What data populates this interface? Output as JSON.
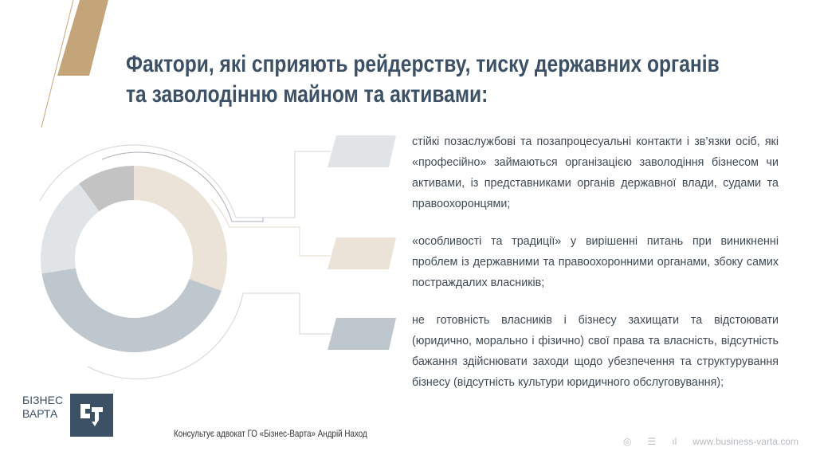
{
  "title": {
    "line1": "Фактори, які сприяють рейдерству, тиску державних органів",
    "line2": "та заволодінню майном та активами:"
  },
  "items": [
    {
      "text": "стійкі позаслужбові та позапроцесуальні контакти і зв’язки осіб, які «професійно» займаються організацією заволодіння бізнесом чи активами, із представниками органів державної влади, судами та правоохоронцями;",
      "color": "#e1e4e7"
    },
    {
      "text": "«особливості та традиції» у вирішенні питань при виникненні проблем із державними та правоохоронними органами, збоку самих постраждалих власників;",
      "color": "#ebe3d8"
    },
    {
      "text": "не готовність власників і бізнесу захищати та відстоювати (юридично, морально і фізично) свої права  та власність, відсутність бажання здійснювати заходи щодо убезпечення та структурування бізнесу (відсутність культури юридичного обслуговування);",
      "color": "#bec6ce"
    }
  ],
  "logo": {
    "line1": "БІЗНЕС",
    "line2": "ВАРТА",
    "mark": "БВ"
  },
  "consult": "Консультує адвокат ГО «Бізнес-Варта» Андрій Наход",
  "footer": {
    "url": "www.business-varta.com",
    "icons": [
      "podcast-icon",
      "list-icon",
      "signal-icon"
    ]
  },
  "colors": {
    "title": "#3d5166",
    "gold": "#c4a97f"
  }
}
